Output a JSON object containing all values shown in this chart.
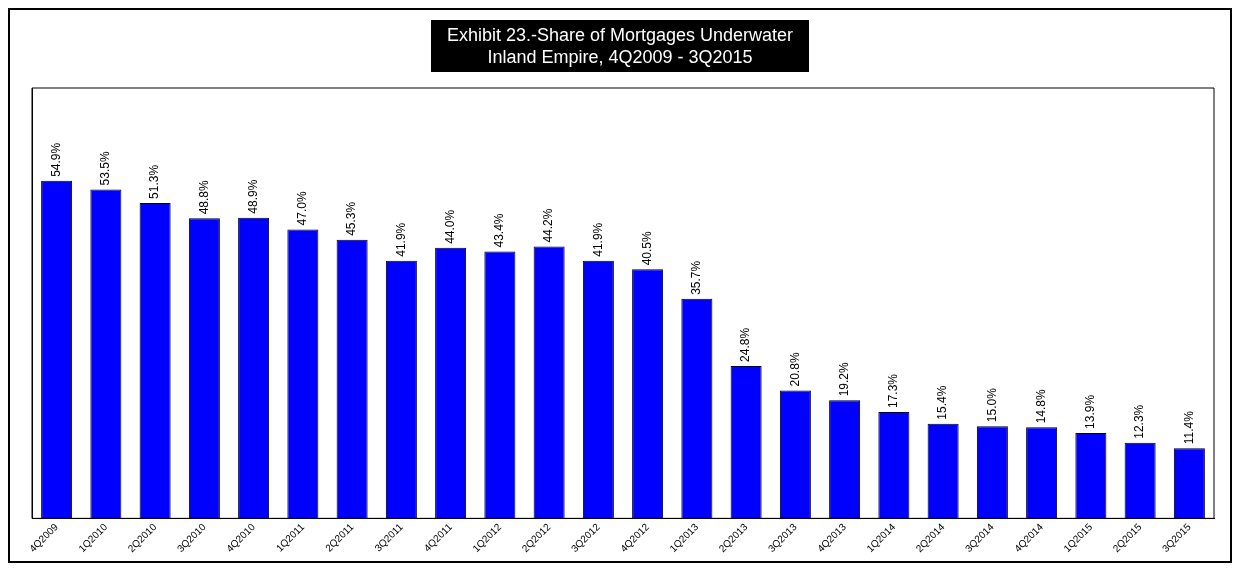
{
  "chart_data": {
    "type": "bar",
    "title": "Exhibit 23.-Share of Mortgages Underwater\nInland Empire,  4Q2009 - 3Q2015",
    "categories": [
      "4Q2009",
      "1Q2010",
      "2Q2010",
      "3Q2010",
      "4Q2010",
      "1Q2011",
      "2Q2011",
      "3Q2011",
      "4Q2011",
      "1Q2012",
      "2Q2012",
      "3Q2012",
      "4Q2012",
      "1Q2013",
      "2Q2013",
      "3Q2013",
      "4Q2013",
      "1Q2014",
      "2Q2014",
      "3Q2014",
      "4Q2014",
      "1Q2015",
      "2Q2015",
      "3Q2015"
    ],
    "values": [
      54.9,
      53.5,
      51.3,
      48.8,
      48.9,
      47.0,
      45.3,
      41.9,
      44.0,
      43.4,
      44.2,
      41.9,
      40.5,
      35.7,
      24.8,
      20.8,
      19.2,
      17.3,
      15.4,
      15.0,
      14.8,
      13.9,
      12.3,
      11.4
    ],
    "value_labels": [
      "54.9%",
      "53.5%",
      "51.3%",
      "48.8%",
      "48.9%",
      "47.0%",
      "45.3%",
      "41.9%",
      "44.0%",
      "43.4%",
      "44.2%",
      "41.9%",
      "40.5%",
      "35.7%",
      "24.8%",
      "20.8%",
      "19.2%",
      "17.3%",
      "15.4%",
      "15.0%",
      "14.8%",
      "13.9%",
      "12.3%",
      "11.4%"
    ],
    "color": "#0000ff",
    "tick_labels": "x",
    "grid": false,
    "legend": false
  }
}
